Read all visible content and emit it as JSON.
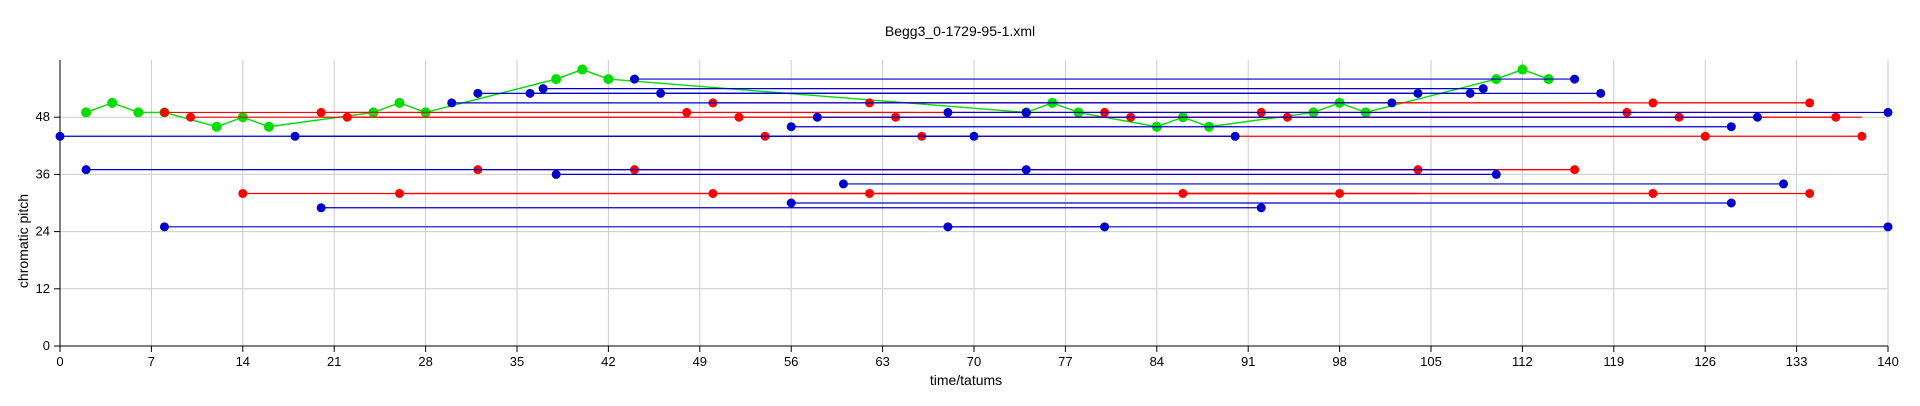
{
  "chart_data": {
    "type": "scatter",
    "title": "Begg3_0-1729-95-1.xml",
    "xlabel": "time/tatums",
    "ylabel": "chromatic pitch",
    "xlim": [
      0,
      140
    ],
    "ylim": [
      0,
      60
    ],
    "xticks": [
      0,
      7,
      14,
      21,
      28,
      35,
      42,
      49,
      56,
      63,
      70,
      77,
      84,
      91,
      98,
      105,
      112,
      119,
      126,
      133,
      140
    ],
    "yticks": [
      0,
      12,
      24,
      36,
      48
    ],
    "grid": true,
    "legend": "none",
    "colors": {
      "blue": "#0000cc",
      "red": "#ff0000",
      "green": "#00dd00",
      "grid": "#cccccc"
    },
    "series": [
      {
        "color": "green",
        "mode": "melody",
        "points": [
          [
            2,
            49
          ],
          [
            4,
            51
          ],
          [
            6,
            49
          ],
          [
            8,
            49
          ],
          [
            12,
            46
          ],
          [
            14,
            48
          ],
          [
            16,
            46
          ],
          [
            24,
            49
          ],
          [
            26,
            51
          ],
          [
            28,
            49
          ],
          [
            38,
            56
          ],
          [
            40,
            58
          ],
          [
            42,
            56
          ],
          [
            74,
            49
          ],
          [
            76,
            51
          ],
          [
            78,
            49
          ],
          [
            84,
            46
          ],
          [
            86,
            48
          ],
          [
            88,
            46
          ],
          [
            96,
            49
          ],
          [
            98,
            51
          ],
          [
            100,
            49
          ],
          [
            110,
            56
          ],
          [
            112,
            58
          ],
          [
            114,
            56
          ]
        ]
      },
      {
        "color": "red",
        "mode": "segments",
        "segments": [
          [
            8,
            134,
            49
          ],
          [
            10,
            136,
            48
          ],
          [
            20,
            126,
            49
          ],
          [
            22,
            48,
            48
          ],
          [
            50,
            134,
            51
          ],
          [
            52,
            138,
            48
          ],
          [
            54,
            68,
            44
          ],
          [
            62,
            120,
            51
          ],
          [
            64,
            122,
            48
          ],
          [
            66,
            138,
            44
          ],
          [
            14,
            134,
            32
          ],
          [
            26,
            98,
            32
          ],
          [
            32,
            116,
            37
          ],
          [
            44,
            104,
            37
          ],
          [
            50,
            104,
            32
          ],
          [
            62,
            122,
            32
          ],
          [
            80,
            82,
            49
          ],
          [
            86,
            98,
            32
          ],
          [
            92,
            124,
            48
          ],
          [
            94,
            106,
            48
          ],
          [
            122,
            134,
            51
          ],
          [
            104,
            116,
            37
          ]
        ],
        "points": [
          [
            8,
            49
          ],
          [
            10,
            48
          ],
          [
            20,
            49
          ],
          [
            22,
            48
          ],
          [
            48,
            49
          ],
          [
            50,
            51
          ],
          [
            52,
            48
          ],
          [
            54,
            44
          ],
          [
            62,
            51
          ],
          [
            64,
            48
          ],
          [
            66,
            44
          ],
          [
            80,
            49
          ],
          [
            82,
            48
          ],
          [
            92,
            49
          ],
          [
            94,
            48
          ],
          [
            120,
            49
          ],
          [
            122,
            51
          ],
          [
            124,
            48
          ],
          [
            126,
            44
          ],
          [
            134,
            51
          ],
          [
            136,
            48
          ],
          [
            138,
            44
          ],
          [
            14,
            32
          ],
          [
            26,
            32
          ],
          [
            32,
            37
          ],
          [
            44,
            37
          ],
          [
            50,
            32
          ],
          [
            62,
            32
          ],
          [
            86,
            32
          ],
          [
            98,
            32
          ],
          [
            104,
            37
          ],
          [
            116,
            37
          ],
          [
            122,
            32
          ],
          [
            134,
            32
          ]
        ]
      },
      {
        "color": "blue",
        "mode": "segments",
        "segments": [
          [
            0,
            70,
            44
          ],
          [
            18,
            90,
            44
          ],
          [
            30,
            102,
            51
          ],
          [
            32,
            104,
            53
          ],
          [
            36,
            108,
            53
          ],
          [
            37,
            109,
            54
          ],
          [
            44,
            116,
            56
          ],
          [
            46,
            118,
            53
          ],
          [
            56,
            128,
            46
          ],
          [
            58,
            130,
            48
          ],
          [
            68,
            140,
            49
          ],
          [
            2,
            110,
            37
          ],
          [
            38,
            110,
            36
          ],
          [
            60,
            132,
            34
          ],
          [
            20,
            92,
            29
          ],
          [
            56,
            128,
            30
          ],
          [
            8,
            140,
            25
          ],
          [
            68,
            80,
            25
          ],
          [
            74,
            74,
            37
          ]
        ],
        "points": [
          [
            0,
            44
          ],
          [
            18,
            44
          ],
          [
            30,
            51
          ],
          [
            32,
            53
          ],
          [
            36,
            53
          ],
          [
            37,
            54
          ],
          [
            44,
            56
          ],
          [
            46,
            53
          ],
          [
            56,
            46
          ],
          [
            58,
            48
          ],
          [
            68,
            49
          ],
          [
            70,
            44
          ],
          [
            74,
            49
          ],
          [
            90,
            44
          ],
          [
            102,
            51
          ],
          [
            104,
            53
          ],
          [
            108,
            53
          ],
          [
            109,
            54
          ],
          [
            116,
            56
          ],
          [
            118,
            53
          ],
          [
            128,
            46
          ],
          [
            130,
            48
          ],
          [
            140,
            49
          ],
          [
            2,
            37
          ],
          [
            38,
            36
          ],
          [
            60,
            34
          ],
          [
            74,
            37
          ],
          [
            20,
            29
          ],
          [
            56,
            30
          ],
          [
            8,
            25
          ],
          [
            68,
            25
          ],
          [
            80,
            25
          ],
          [
            92,
            29
          ],
          [
            110,
            36
          ],
          [
            128,
            30
          ],
          [
            132,
            34
          ],
          [
            140,
            25
          ]
        ]
      }
    ]
  }
}
